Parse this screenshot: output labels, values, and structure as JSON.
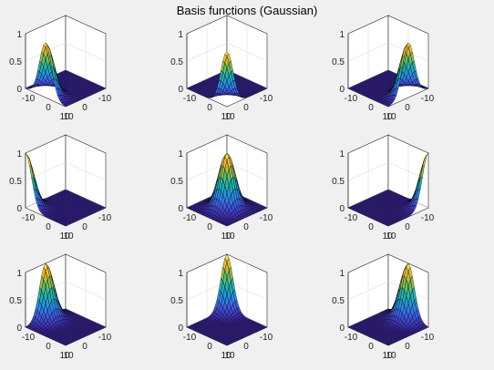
{
  "figure": {
    "title": "Basis functions (Gaussian)"
  },
  "chart_data": {
    "type": "surface",
    "title": "Basis functions (Gaussian)",
    "function": "exp(-((x-cx)^2 + (y-cy)^2) / (2*sigma^2))",
    "sigma": 3,
    "grid": true,
    "colormap": "parula",
    "colormap_stops": [
      "#3e26a8",
      "#4255e0",
      "#2f88f0",
      "#13adc6",
      "#3ac18a",
      "#a5bd36",
      "#f5ba3a",
      "#f9f918"
    ],
    "subplots": [
      {
        "center": [
          0,
          10
        ],
        "xlim": [
          -10,
          10
        ],
        "ylim": [
          -10,
          10
        ],
        "zlim": [
          0,
          1
        ],
        "z_ticks": [
          "0",
          "0.5",
          "1"
        ],
        "x_ticks": [
          "-10",
          "0",
          "10"
        ],
        "y_ticks": [
          "-10",
          "0",
          "10"
        ]
      },
      {
        "center": [
          10,
          10
        ],
        "xlim": [
          -10,
          10
        ],
        "ylim": [
          -10,
          10
        ],
        "zlim": [
          0,
          1
        ],
        "z_ticks": [
          "0",
          "0.5",
          "1"
        ],
        "x_ticks": [
          "-10",
          "0",
          "10"
        ],
        "y_ticks": [
          "-10",
          "0",
          "10"
        ]
      },
      {
        "center": [
          10,
          0
        ],
        "xlim": [
          -10,
          10
        ],
        "ylim": [
          -10,
          10
        ],
        "zlim": [
          0,
          1
        ],
        "z_ticks": [
          "0",
          "0.5",
          "1"
        ],
        "x_ticks": [
          "-10",
          "0",
          "10"
        ],
        "y_ticks": [
          "-10",
          "0",
          "10"
        ]
      },
      {
        "center": [
          -10,
          10
        ],
        "xlim": [
          -10,
          10
        ],
        "ylim": [
          -10,
          10
        ],
        "zlim": [
          0,
          1
        ],
        "z_ticks": [
          "0",
          "0.5",
          "1"
        ],
        "x_ticks": [
          "-10",
          "0",
          "10"
        ],
        "y_ticks": [
          "-10",
          "0",
          "10"
        ]
      },
      {
        "center": [
          0,
          0
        ],
        "xlim": [
          -10,
          10
        ],
        "ylim": [
          -10,
          10
        ],
        "zlim": [
          0,
          1
        ],
        "z_ticks": [
          "0",
          "0.5",
          "1"
        ],
        "x_ticks": [
          "-10",
          "0",
          "10"
        ],
        "y_ticks": [
          "-10",
          "0",
          "10"
        ]
      },
      {
        "center": [
          10,
          -10
        ],
        "xlim": [
          -10,
          10
        ],
        "ylim": [
          -10,
          10
        ],
        "zlim": [
          0,
          1
        ],
        "z_ticks": [
          "0",
          "0.5",
          "1"
        ],
        "x_ticks": [
          "-10",
          "0",
          "10"
        ],
        "y_ticks": [
          "-10",
          "0",
          "10"
        ]
      },
      {
        "center": [
          -10,
          0
        ],
        "xlim": [
          -10,
          10
        ],
        "ylim": [
          -10,
          10
        ],
        "zlim": [
          0,
          1
        ],
        "z_ticks": [
          "0",
          "0.5",
          "1"
        ],
        "x_ticks": [
          "-10",
          "0",
          "10"
        ],
        "y_ticks": [
          "-10",
          "0",
          "10"
        ]
      },
      {
        "center": [
          -10,
          -10
        ],
        "xlim": [
          -10,
          10
        ],
        "ylim": [
          -10,
          10
        ],
        "zlim": [
          0,
          1
        ],
        "z_ticks": [
          "0",
          "0.5",
          "1"
        ],
        "x_ticks": [
          "-10",
          "0",
          "10"
        ],
        "y_ticks": [
          "-10",
          "0",
          "10"
        ]
      },
      {
        "center": [
          0,
          -10
        ],
        "xlim": [
          -10,
          10
        ],
        "ylim": [
          -10,
          10
        ],
        "zlim": [
          0,
          1
        ],
        "z_ticks": [
          "0",
          "0.5",
          "1"
        ],
        "x_ticks": [
          "-10",
          "0",
          "10"
        ],
        "y_ticks": [
          "-10",
          "0",
          "10"
        ]
      }
    ]
  }
}
